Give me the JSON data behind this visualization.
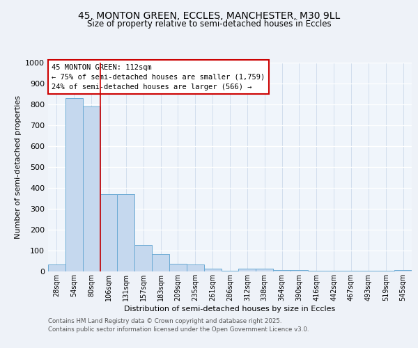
{
  "title_line1": "45, MONTON GREEN, ECCLES, MANCHESTER, M30 9LL",
  "title_line2": "Size of property relative to semi-detached houses in Eccles",
  "xlabel": "Distribution of semi-detached houses by size in Eccles",
  "ylabel": "Number of semi-detached properties",
  "categories": [
    "28sqm",
    "54sqm",
    "80sqm",
    "106sqm",
    "131sqm",
    "157sqm",
    "183sqm",
    "209sqm",
    "235sqm",
    "261sqm",
    "286sqm",
    "312sqm",
    "338sqm",
    "364sqm",
    "390sqm",
    "416sqm",
    "442sqm",
    "467sqm",
    "493sqm",
    "519sqm",
    "545sqm"
  ],
  "values": [
    35,
    830,
    790,
    370,
    370,
    128,
    85,
    37,
    33,
    13,
    5,
    13,
    13,
    8,
    6,
    4,
    2,
    2,
    2,
    2,
    8
  ],
  "bar_color": "#c5d8ee",
  "bar_edge_color": "#6aaad4",
  "vline_x_index": 3,
  "vline_color": "#cc0000",
  "annotation_title": "45 MONTON GREEN: 112sqm",
  "annotation_line1": "← 75% of semi-detached houses are smaller (1,759)",
  "annotation_line2": "24% of semi-detached houses are larger (566) →",
  "annotation_box_color": "#cc0000",
  "ylim": [
    0,
    1000
  ],
  "yticks": [
    0,
    100,
    200,
    300,
    400,
    500,
    600,
    700,
    800,
    900,
    1000
  ],
  "footer_line1": "Contains HM Land Registry data © Crown copyright and database right 2025.",
  "footer_line2": "Contains public sector information licensed under the Open Government Licence v3.0.",
  "bg_color": "#eef2f8",
  "plot_bg_color": "#f0f5fb"
}
